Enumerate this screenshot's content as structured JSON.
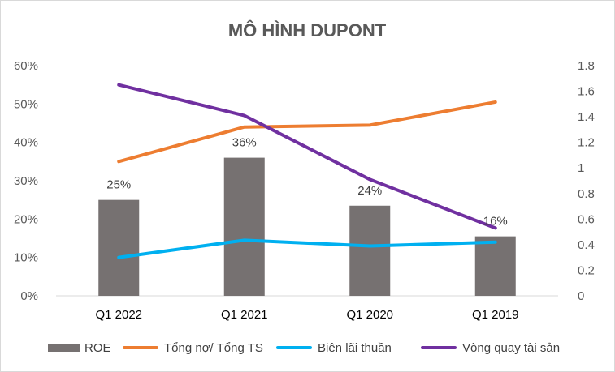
{
  "chart_data": {
    "type": "bar",
    "title": "MÔ HÌNH DUPONT",
    "categories": [
      "Q1 2022",
      "Q1 2021",
      "Q1 2020",
      "Q1 2019"
    ],
    "y_left": {
      "range": [
        0,
        0.6
      ],
      "ticks": [
        0,
        0.1,
        0.2,
        0.3,
        0.4,
        0.5,
        0.6
      ],
      "tick_labels": [
        "0%",
        "10%",
        "20%",
        "30%",
        "40%",
        "50%",
        "60%"
      ]
    },
    "y_right": {
      "range": [
        0,
        1.8
      ],
      "ticks": [
        0,
        0.2,
        0.4,
        0.6,
        0.8,
        1,
        1.2,
        1.4,
        1.6,
        1.8
      ],
      "tick_labels": [
        "0",
        "0.2",
        "0.4",
        "0.6",
        "0.8",
        "1",
        "1.2",
        "1.4",
        "1.6",
        "1.8"
      ]
    },
    "grid": false,
    "legend_position": "bottom",
    "series": [
      {
        "name": "ROE",
        "kind": "bar",
        "axis": "left",
        "color": "#767171",
        "values": [
          0.25,
          0.36,
          0.235,
          0.155
        ],
        "data_labels": [
          "25%",
          "36%",
          "24%",
          "16%"
        ]
      },
      {
        "name": "Tổng nợ/ Tổng TS",
        "kind": "line",
        "axis": "left",
        "color": "#ED7D31",
        "values": [
          0.35,
          0.44,
          0.445,
          0.505
        ]
      },
      {
        "name": "Biên lãi thuần",
        "kind": "line",
        "axis": "left",
        "color": "#00B0F0",
        "values": [
          0.1,
          0.145,
          0.13,
          0.14
        ]
      },
      {
        "name": "Vòng quay tài sản",
        "kind": "line",
        "axis": "right",
        "color": "#7030A0",
        "values": [
          1.65,
          1.41,
          0.91,
          0.53
        ]
      }
    ]
  }
}
